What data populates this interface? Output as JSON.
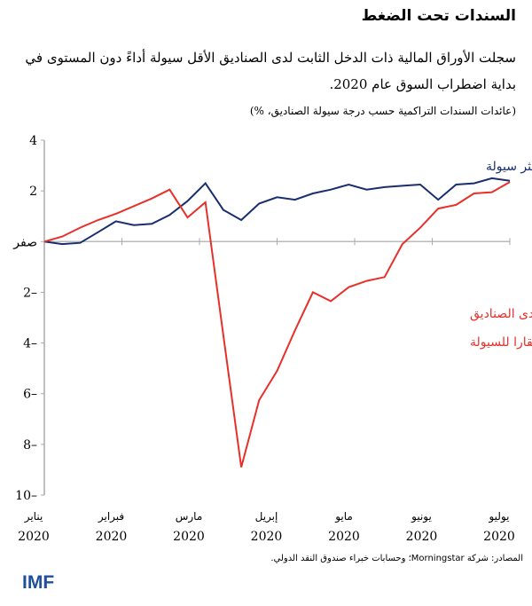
{
  "title": "السندات تحت الضغط",
  "subtitle": "سجلت الأوراق المالية ذات الدخل الثابت لدى الصناديق الأقل سيولة أداءً دون المستوى في بداية اضطراب السوق عام 2020.",
  "unit": "(عائدات السندات التراكمية حسب درجة سيولة الصناديق، %)",
  "source": "المصادر: شركة Morningstar؛ وحسابات خبراء صندوق النقد الدولي.",
  "logo": "IMF",
  "chart_data": {
    "type": "line",
    "ylim": [
      -10,
      4
    ],
    "yticks": [
      4,
      2,
      0,
      -2,
      -4,
      -6,
      -8,
      -10
    ],
    "ytick_labels": [
      "4",
      "2",
      "صفر",
      "2–",
      "4–",
      "6–",
      "8–",
      "10–"
    ],
    "xticks": [
      {
        "month": "يناير",
        "year": "2020"
      },
      {
        "month": "فبراير",
        "year": "2020"
      },
      {
        "month": "مارس",
        "year": "2020"
      },
      {
        "month": "إبريل",
        "year": "2020"
      },
      {
        "month": "مايو",
        "year": "2020"
      },
      {
        "month": "يونيو",
        "year": "2020"
      },
      {
        "month": "يوليو",
        "year": "2020"
      }
    ],
    "series": [
      {
        "name": "عائدات السندات لدى الصناديق الأكثر سيولة",
        "label_lines": [
          "عائدات السندات لدى الصناديق الأكثر سيولة"
        ],
        "color": "#1a2e6e",
        "values": [
          0,
          -0.1,
          -0.05,
          0.37,
          0.8,
          0.65,
          0.7,
          1.05,
          1.6,
          2.3,
          1.25,
          0.85,
          1.5,
          1.75,
          1.65,
          1.9,
          2.05,
          2.25,
          2.05,
          2.15,
          2.2,
          2.25,
          1.65,
          2.25,
          2.3,
          2.5,
          2.4
        ]
      },
      {
        "name": "عائدات السندات لدى الصناديق الأكثر افتقارا للسيولة",
        "label_lines": [
          "عائدات السندات لدى الصناديق",
          "الأكثر افتقارا للسيولة"
        ],
        "color": "#e8302a",
        "values": [
          0,
          0.2,
          0.55,
          0.85,
          1.1,
          1.4,
          1.7,
          2.05,
          0.95,
          1.55,
          -3.7,
          -8.9,
          -6.25,
          -5.1,
          -3.5,
          -2.0,
          -2.35,
          -1.8,
          -1.55,
          -1.4,
          -0.1,
          0.55,
          1.3,
          1.45,
          1.9,
          1.95,
          2.35
        ]
      }
    ]
  }
}
